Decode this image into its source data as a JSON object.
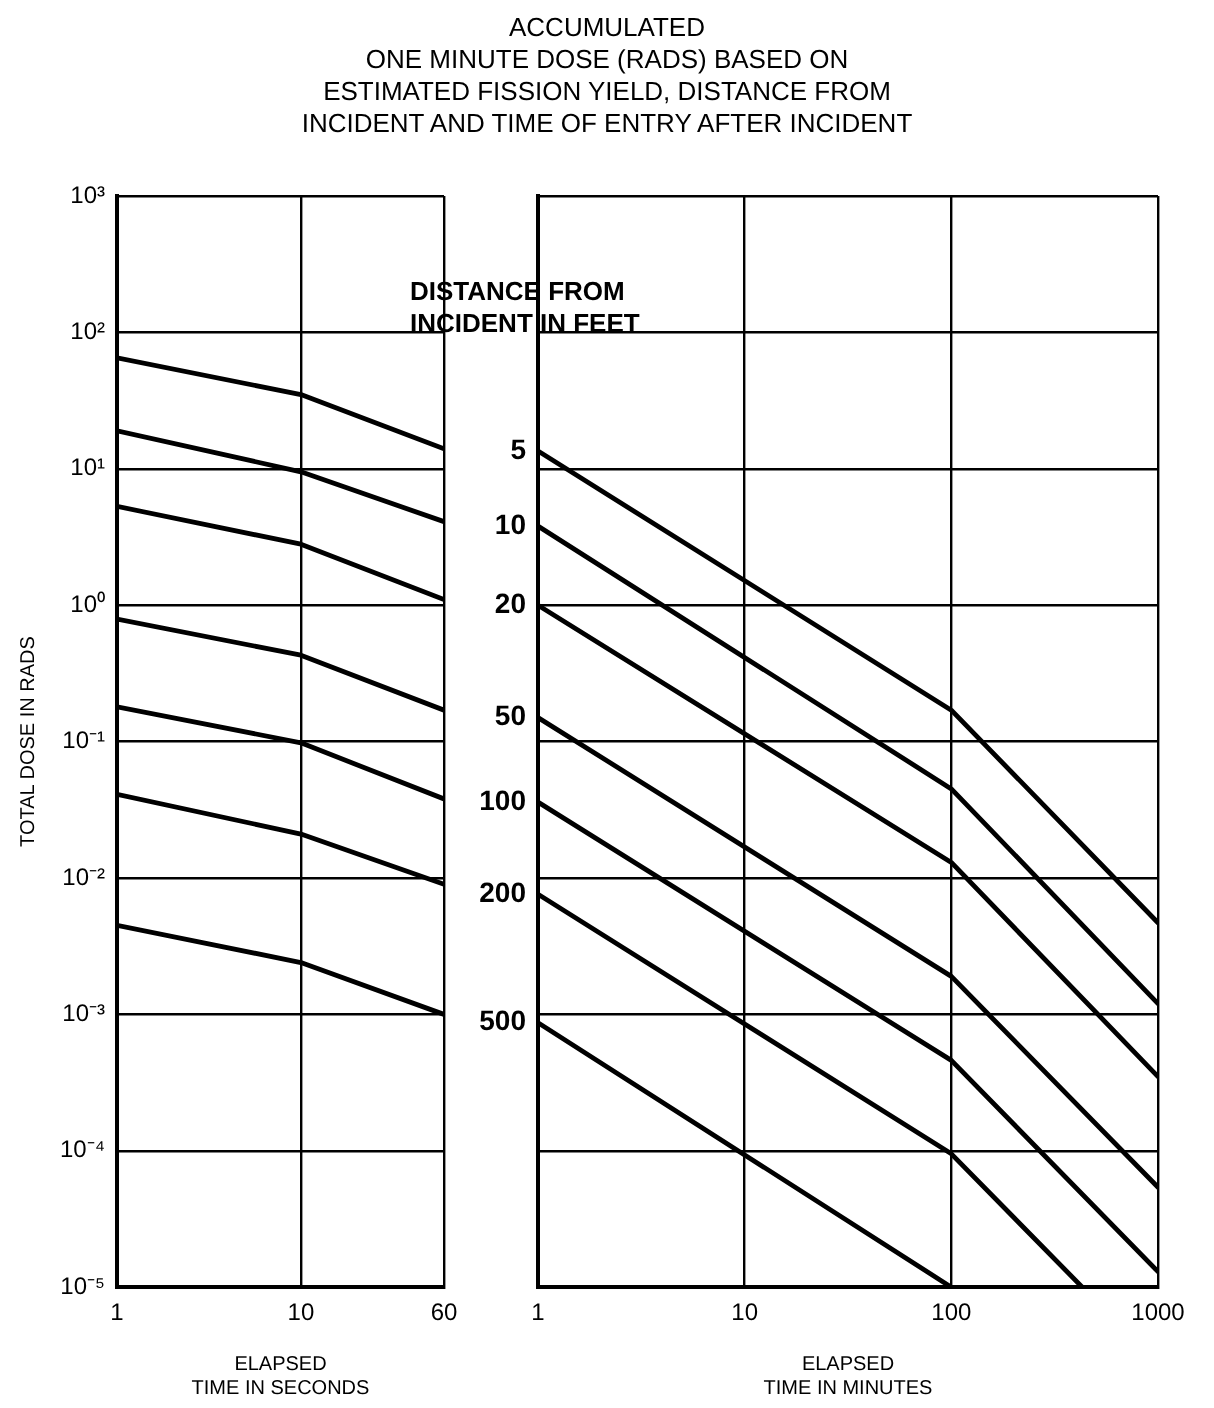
{
  "chart_data": [
    {
      "type": "line",
      "title": "ACCUMULATED\nONE MINUTE DOSE (RADS) BASED ON\nESTIMATED FISSION YIELD, DISTANCE FROM\nINCIDENT AND TIME OF ENTRY AFTER INCIDENT",
      "xlabel": "ELAPSED\nTIME IN SECONDS",
      "ylabel": "TOTAL DOSE IN RADS",
      "log": "xy",
      "grid": true,
      "marker": "none",
      "line_style": "solid",
      "xlim": [
        1,
        60
      ],
      "xticks": [
        1,
        10,
        60
      ],
      "ylim": [
        1e-05,
        1000
      ],
      "yticks": [
        {
          "value": 1e-05,
          "label": "10⁻⁵"
        },
        {
          "value": 0.0001,
          "label": "10⁻⁴"
        },
        {
          "value": 0.001,
          "label": "10⁻³"
        },
        {
          "value": 0.01,
          "label": "10⁻²"
        },
        {
          "value": 0.1,
          "label": "10⁻¹"
        },
        {
          "value": 1,
          "label": "10⁰"
        },
        {
          "value": 10,
          "label": "10¹"
        },
        {
          "value": 100,
          "label": "10²"
        },
        {
          "value": 1000,
          "label": "10³"
        }
      ],
      "x": [
        1,
        10,
        60
      ],
      "series": [
        {
          "color": "#000000",
          "values": [
            65,
            35,
            14
          ]
        },
        {
          "color": "#000000",
          "values": [
            19,
            9.5,
            4.1
          ]
        },
        {
          "color": "#000000",
          "values": [
            5.3,
            2.8,
            1.1
          ]
        },
        {
          "color": "#000000",
          "values": [
            0.79,
            0.43,
            0.17
          ]
        },
        {
          "color": "#000000",
          "values": [
            0.18,
            0.098,
            0.038
          ]
        },
        {
          "color": "#000000",
          "values": [
            0.041,
            0.021,
            0.009
          ]
        },
        {
          "color": "#000000",
          "values": [
            0.0045,
            0.0024,
            0.001
          ]
        }
      ]
    },
    {
      "type": "line",
      "xlabel": "ELAPSED\nTIME IN MINUTES",
      "legend_title": "DISTANCE FROM\nINCIDENT IN FEET",
      "log": "xy",
      "grid": true,
      "marker": "none",
      "line_style": "solid",
      "tick_labels": "x",
      "xlim": [
        1,
        1000
      ],
      "xticks": [
        1,
        10,
        100,
        1000
      ],
      "ylim": [
        1e-05,
        1000
      ],
      "yticks": [
        1e-05,
        0.0001,
        0.001,
        0.01,
        0.1,
        1,
        10,
        100,
        1000
      ],
      "x": [
        1,
        100,
        1000
      ],
      "series": [
        {
          "name": "5",
          "color": "#000000",
          "values": [
            13.5,
            0.17,
            0.0047
          ]
        },
        {
          "name": "10",
          "color": "#000000",
          "values": [
            3.8,
            0.045,
            0.0012
          ]
        },
        {
          "name": "20",
          "color": "#000000",
          "values": [
            1.0,
            0.013,
            0.00035
          ]
        },
        {
          "name": "50",
          "color": "#000000",
          "values": [
            0.15,
            0.0019,
            5.4e-05
          ]
        },
        {
          "name": "100",
          "color": "#000000",
          "values": [
            0.036,
            0.00046,
            1.3e-05
          ]
        },
        {
          "name": "200",
          "color": "#000000",
          "x": [
            1,
            100,
            430
          ],
          "values": [
            0.0076,
            9.5e-05,
            1e-05
          ]
        },
        {
          "name": "500",
          "color": "#000000",
          "x": [
            1,
            100
          ],
          "values": [
            0.00087,
            1e-05
          ]
        }
      ]
    }
  ]
}
